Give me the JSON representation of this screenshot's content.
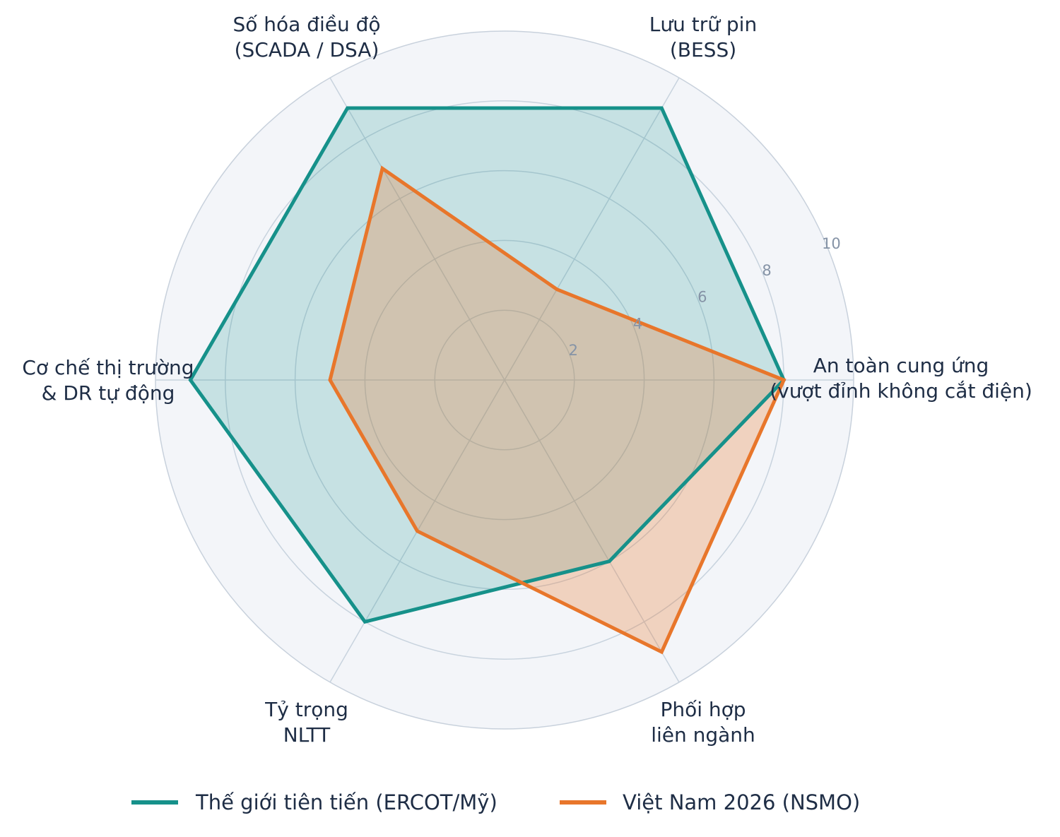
{
  "chart_data": {
    "type": "radar",
    "title": "",
    "axes": [
      [
        "An toàn cung ứng",
        "(vượt đỉnh không cắt điện)"
      ],
      [
        "Lưu trữ pin",
        "(BESS)"
      ],
      [
        "Số hóa điều độ",
        "(SCADA / DSA)"
      ],
      [
        "Cơ chế thị trường",
        "& DR tự động"
      ],
      [
        "Tỷ trọng",
        "NLTT"
      ],
      [
        "Phối hợp",
        "liên ngành"
      ]
    ],
    "rlim": [
      0,
      10
    ],
    "ticks": [
      "2",
      "4",
      "6",
      "8",
      "10"
    ],
    "tick_values": [
      2,
      4,
      6,
      8,
      10
    ],
    "grid": true,
    "legend_position": "bottom",
    "series": [
      {
        "name": "Thế giới tiên tiến (ERCOT/Mỹ)",
        "values": [
          8,
          9,
          9,
          9,
          8,
          6
        ],
        "color": "#16918a",
        "fill": "rgba(22,145,138,0.20)"
      },
      {
        "name": "Việt Nam 2026 (NSMO)",
        "values": [
          8,
          3,
          7,
          5,
          5,
          9
        ],
        "color": "#e8762b",
        "fill": "rgba(232,118,43,0.28)"
      }
    ]
  }
}
